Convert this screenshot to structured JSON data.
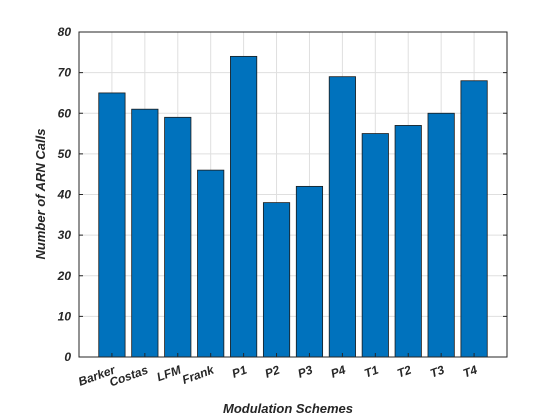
{
  "chart_data": {
    "type": "bar",
    "title": "",
    "xlabel": "Modulation Schemes",
    "ylabel": "Number of ARN Calls",
    "categories": [
      "Barker",
      "Costas",
      "LFM",
      "Frank",
      "P1",
      "P2",
      "P3",
      "P4",
      "T1",
      "T2",
      "T3",
      "T4"
    ],
    "values": [
      65,
      61,
      59,
      46,
      74,
      38,
      42,
      69,
      55,
      57,
      60,
      68
    ],
    "ylim": [
      0,
      80
    ],
    "yticks": [
      0,
      10,
      20,
      30,
      40,
      50,
      60,
      70,
      80
    ],
    "grid": true,
    "bar_color": "#0072BD",
    "bar_edge_color": "#1a1a1a"
  }
}
